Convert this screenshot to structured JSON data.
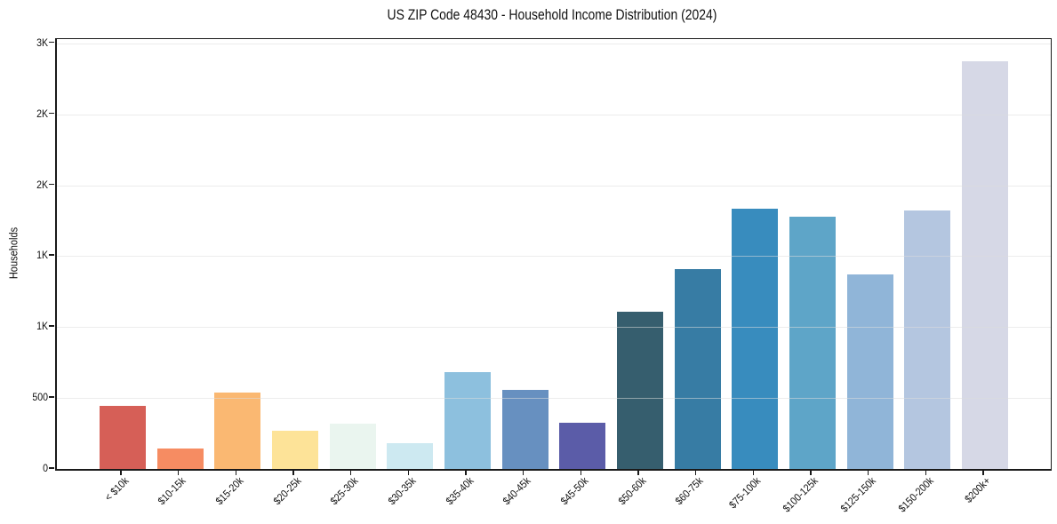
{
  "chart_data": {
    "type": "bar",
    "title": "US ZIP Code 48430 - Household Income Distribution (2024)",
    "xlabel": "",
    "ylabel": "Households",
    "categories": [
      "< $10k",
      "$10-15k",
      "$15-20k",
      "$20-25k",
      "$25-30k",
      "$30-35k",
      "$35-40k",
      "$40-45k",
      "$45-50k",
      "$50-60k",
      "$60-75k",
      "$75-100k",
      "$100-125k",
      "$125-150k",
      "$150-200k",
      "$200k+"
    ],
    "values": [
      445,
      145,
      540,
      270,
      320,
      180,
      680,
      555,
      325,
      1110,
      1410,
      1835,
      1780,
      1370,
      1820,
      2875
    ],
    "bar_colors": [
      "#d65f57",
      "#f68c62",
      "#fab872",
      "#fde398",
      "#eaf5ef",
      "#cde9f1",
      "#8dc0de",
      "#6790c0",
      "#5b5ca8",
      "#365e6e",
      "#377ca4",
      "#388cbe",
      "#5ea5c8",
      "#90b5d8",
      "#b4c6e0",
      "#d6d8e6"
    ],
    "ylim": [
      0,
      3030
    ],
    "yticks": {
      "values": [
        0,
        500,
        1000,
        1500,
        2000,
        2500,
        3000
      ],
      "labels": [
        "0",
        "500",
        "1K",
        "1K",
        "2K",
        "2K",
        "3K"
      ]
    },
    "grid": "horizontal",
    "legend": "none",
    "text_color": "#1a1a1a",
    "grid_color": "#dcdcdc"
  }
}
